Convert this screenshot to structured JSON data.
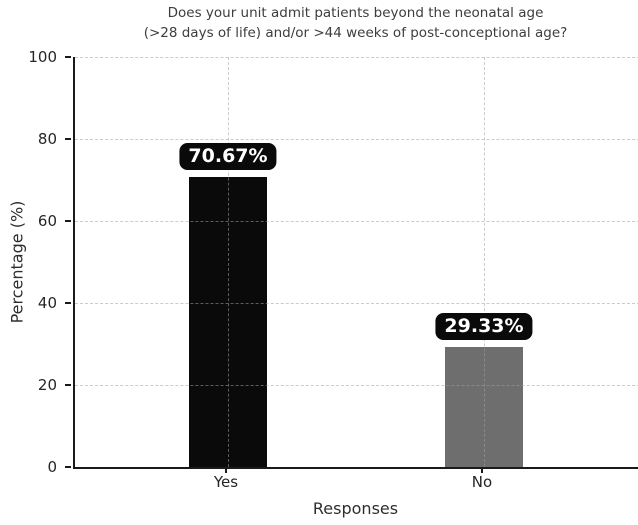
{
  "chart_data": {
    "type": "bar",
    "title_line1": "Does your unit admit patients beyond the neonatal age",
    "title_line2": "(>28 days of life) and/or >44 weeks of post-conceptional age?",
    "xlabel": "Responses",
    "ylabel": "Percentage (%)",
    "categories": [
      "Yes",
      "No"
    ],
    "values": [
      70.67,
      29.33
    ],
    "value_labels": [
      "70.67%",
      "29.33%"
    ],
    "bar_colors": [
      "#0a0a0a",
      "#6e6e6e"
    ],
    "yticks": [
      0,
      20,
      40,
      60,
      80,
      100
    ],
    "ylim": [
      0,
      100
    ],
    "grid": "dashed horizontal gridlines at yticks and dashed vertical gridlines at bar centers, drawn over bars",
    "legend": "none",
    "annotation_style": {
      "background": "#0a0a0a",
      "text_color": "#ffffff",
      "shape": "rounded-box"
    }
  }
}
